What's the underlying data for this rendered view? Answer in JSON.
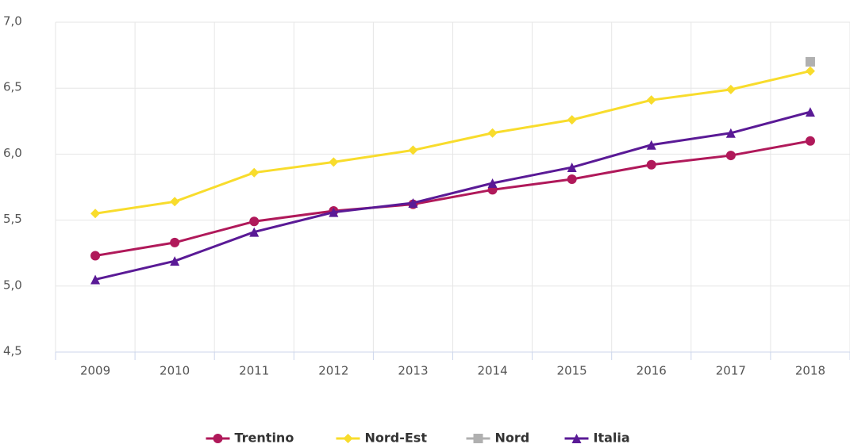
{
  "chart_data": {
    "type": "line",
    "categories": [
      "2009",
      "2010",
      "2011",
      "2012",
      "2013",
      "2014",
      "2015",
      "2016",
      "2017",
      "2018"
    ],
    "series": [
      {
        "name": "Trentino",
        "color": "#b0195a",
        "marker": "circle",
        "values": [
          5.23,
          5.33,
          5.49,
          5.57,
          5.62,
          5.73,
          5.81,
          5.92,
          5.99,
          6.1
        ]
      },
      {
        "name": "Nord-Est",
        "color": "#f8dc2c",
        "marker": "diamond",
        "values": [
          5.55,
          5.64,
          5.86,
          5.94,
          6.03,
          6.16,
          6.26,
          6.41,
          6.49,
          6.63
        ]
      },
      {
        "name": "Nord",
        "color": "#b0b0b0",
        "marker": "square",
        "values": [
          null,
          null,
          null,
          null,
          null,
          null,
          null,
          null,
          null,
          6.7
        ]
      },
      {
        "name": "Italia",
        "color": "#5a1a96",
        "marker": "triangle",
        "values": [
          5.05,
          5.19,
          5.41,
          5.56,
          5.63,
          5.78,
          5.9,
          6.07,
          6.16,
          6.32
        ]
      }
    ],
    "ylim": [
      4.5,
      7.0
    ],
    "yticks": [
      {
        "value": 4.5,
        "label": "4,5"
      },
      {
        "value": 5.0,
        "label": "5,0"
      },
      {
        "value": 5.5,
        "label": "5,5"
      },
      {
        "value": 6.0,
        "label": "6,0"
      },
      {
        "value": 6.5,
        "label": "6,5"
      },
      {
        "value": 7.0,
        "label": "7,0"
      }
    ],
    "grid": true,
    "legend": "bottom"
  }
}
